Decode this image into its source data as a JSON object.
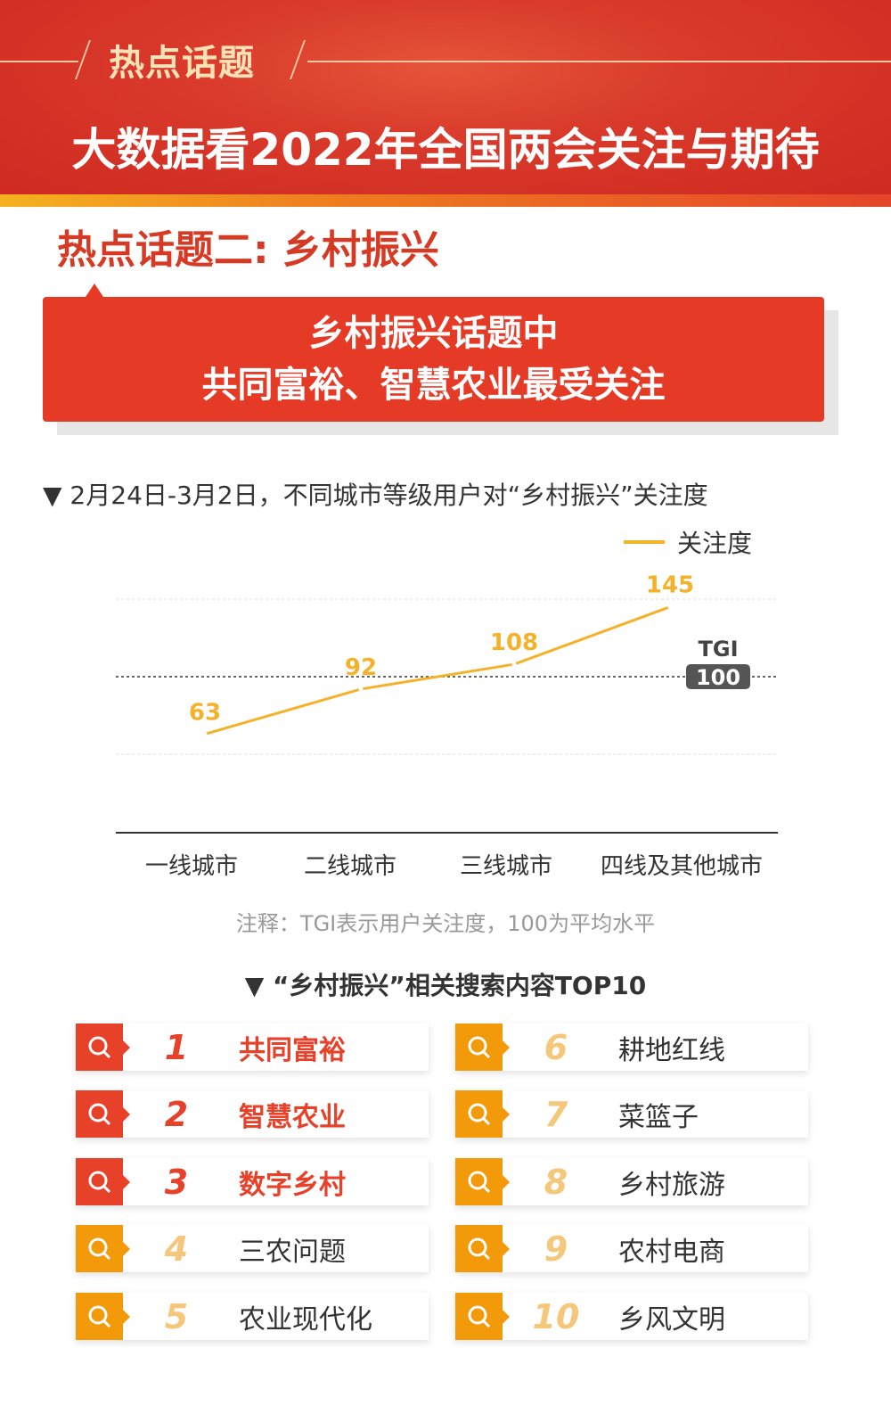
{
  "header": {
    "kicker": "热点话题",
    "title": "大数据看2022年全国两会关注与期待"
  },
  "subhead": "热点话题二: 乡村振兴",
  "callout": {
    "line1": "乡村振兴话题中",
    "line2": "共同富裕、智慧农业最受关注"
  },
  "chart_section": {
    "title": "▼ 2月24日-3月2日，不同城市等级用户对“乡村振兴”关注度",
    "note": "注释：TGI表示用户关注度，100为平均水平"
  },
  "chart_data": {
    "type": "line",
    "categories": [
      "一线城市",
      "二线城市",
      "三线城市",
      "四线及其他城市"
    ],
    "series": [
      {
        "name": "关注度",
        "values": [
          63,
          92,
          108,
          145
        ],
        "color": "#f4b22a"
      }
    ],
    "reference_line": {
      "label": "TGI",
      "value": 100
    },
    "ylim": [
      50,
      150
    ],
    "grid": true,
    "legend": "top-right"
  },
  "top10": {
    "title": "▼ “乡村振兴”相关搜索内容TOP10",
    "items": [
      {
        "rank": "1",
        "label": "共同富裕"
      },
      {
        "rank": "2",
        "label": "智慧农业"
      },
      {
        "rank": "3",
        "label": "数字乡村"
      },
      {
        "rank": "4",
        "label": "三农问题"
      },
      {
        "rank": "5",
        "label": "农业现代化"
      },
      {
        "rank": "6",
        "label": "耕地红线"
      },
      {
        "rank": "7",
        "label": "菜篮子"
      },
      {
        "rank": "8",
        "label": "乡村旅游"
      },
      {
        "rank": "9",
        "label": "农村电商"
      },
      {
        "rank": "10",
        "label": "乡风文明"
      }
    ],
    "colors": {
      "top": "#e8412a",
      "rest": "#f29a0a",
      "rest_number": "#f5c77a"
    }
  }
}
